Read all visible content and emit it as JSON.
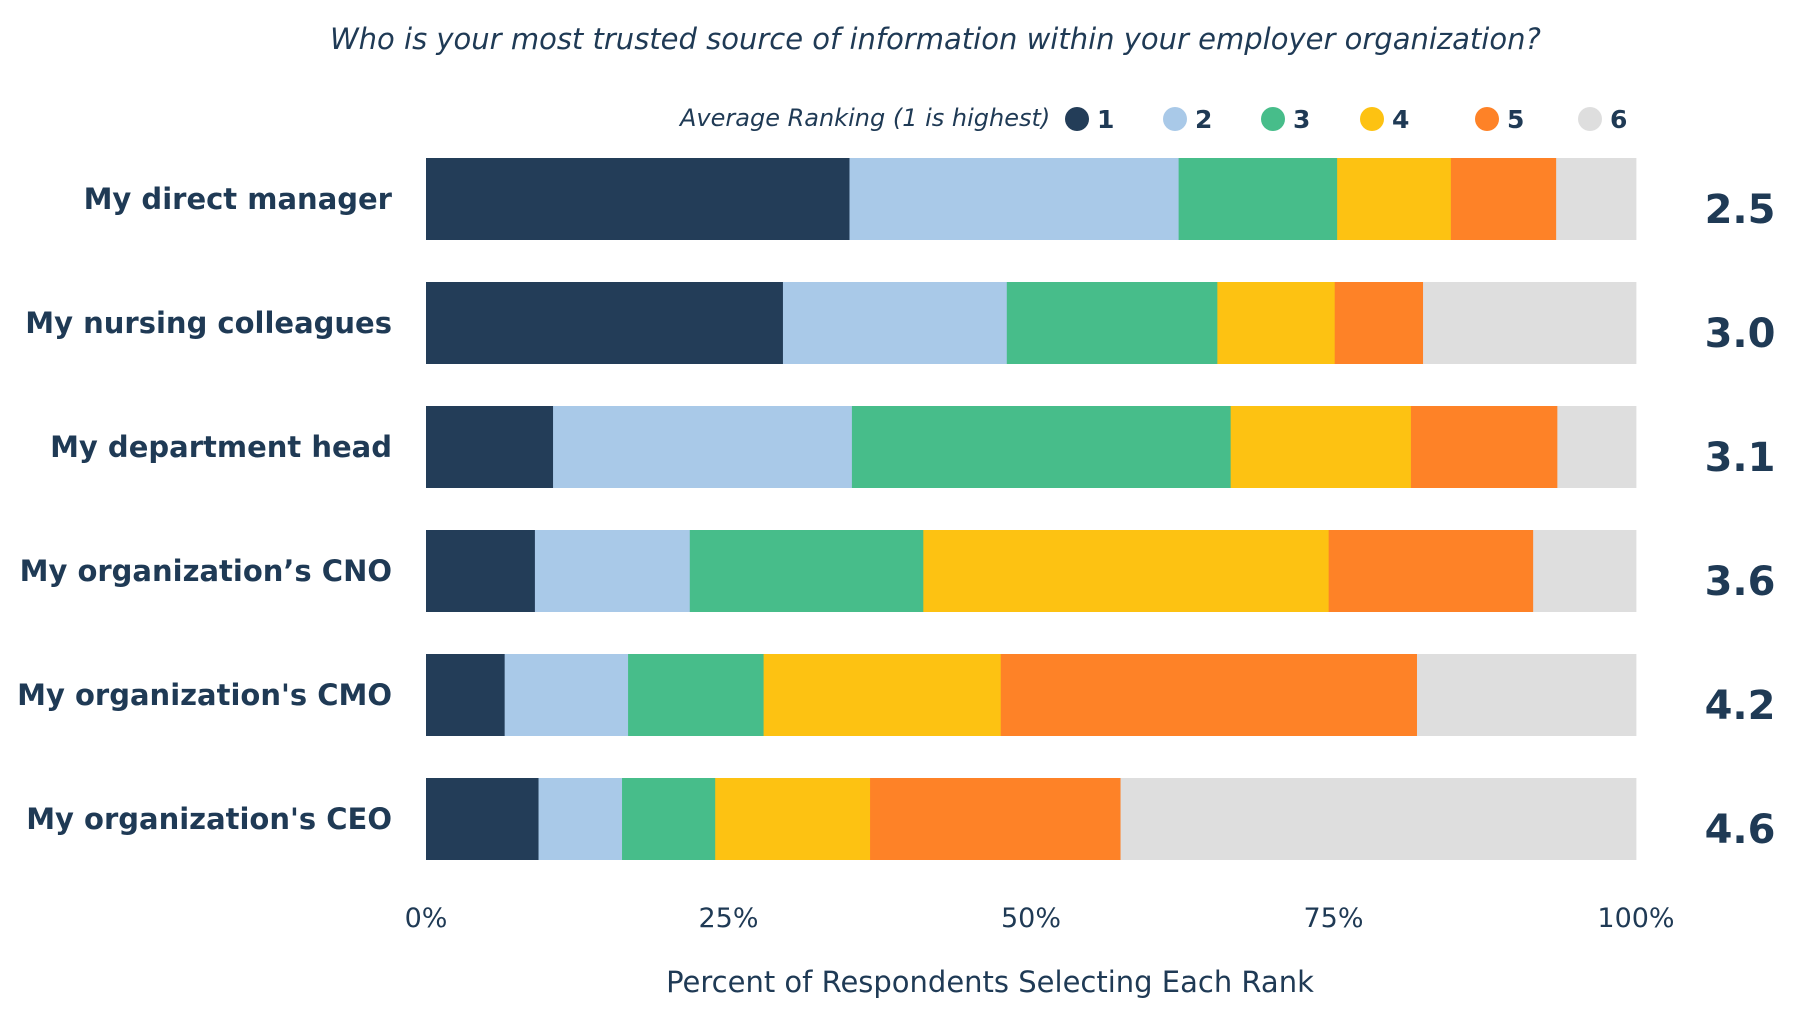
{
  "chart_data": {
    "type": "bar",
    "orientation": "horizontal",
    "stacked": true,
    "title": "Who is your most trusted source of information within your employer organization?",
    "xlabel": "Percent of Respondents Selecting Each Rank",
    "ylabel": "",
    "xlim": [
      0,
      100
    ],
    "x_ticks": [
      "0%",
      "25%",
      "50%",
      "75%",
      "100%"
    ],
    "grid": false,
    "legend_title": "Average Ranking (1 is highest)",
    "legend_position": "top",
    "categories": [
      "My direct manager",
      "My nursing colleagues",
      "My department head",
      "My organization’s CNO",
      "My organization's CMO",
      "My organization's CEO"
    ],
    "average_rankings": [
      "2.5",
      "3.0",
      "3.1",
      "3.6",
      "4.2",
      "4.6"
    ],
    "series": [
      {
        "name": "1",
        "color": "#233d58",
        "values": [
          35,
          29.5,
          10.5,
          9,
          6.5,
          9.3
        ]
      },
      {
        "name": "2",
        "color": "#a9c9e8",
        "values": [
          27.2,
          18.5,
          24.7,
          12.8,
          10.2,
          6.9
        ]
      },
      {
        "name": "3",
        "color": "#47bd8a",
        "values": [
          13.1,
          17.4,
          31.3,
          19.3,
          11.2,
          7.7
        ]
      },
      {
        "name": "4",
        "color": "#fdc212",
        "values": [
          9.4,
          9.7,
          14.9,
          33.5,
          19.6,
          12.8
        ]
      },
      {
        "name": "5",
        "color": "#fe8227",
        "values": [
          8.7,
          7.3,
          12.1,
          16.9,
          34.4,
          20.7
        ]
      },
      {
        "name": "6",
        "color": "#dedede",
        "values": [
          6.6,
          17.6,
          6.5,
          8.5,
          18.1,
          42.6
        ]
      }
    ]
  }
}
